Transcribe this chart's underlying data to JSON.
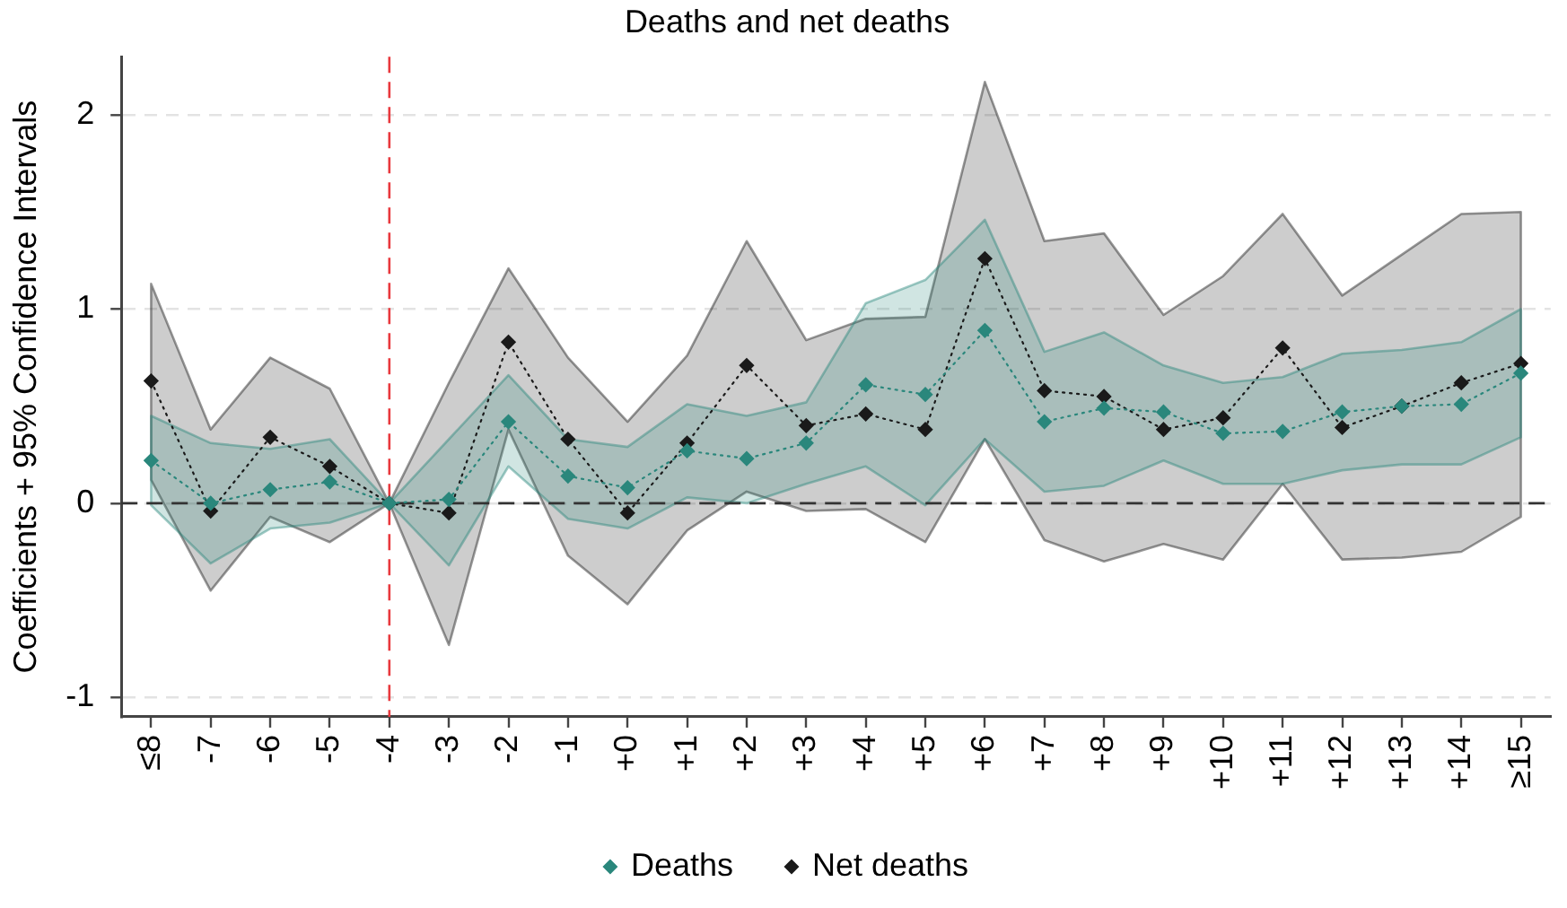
{
  "chart_data": {
    "type": "line",
    "title": "Deaths and net deaths",
    "ylabel": "Coefficients + 95% Confidence Intervals",
    "categories": [
      "≤8",
      "-7",
      "-6",
      "-5",
      "-4",
      "-3",
      "-2",
      "-1",
      "+0",
      "+1",
      "+2",
      "+3",
      "+4",
      "+5",
      "+6",
      "+7",
      "+8",
      "+9",
      "+10",
      "+11",
      "+12",
      "+13",
      "+14",
      "≥15"
    ],
    "series": [
      {
        "name": "Deaths",
        "color": "#2a877c",
        "values": [
          0.22,
          0.0,
          0.07,
          0.11,
          0,
          0.02,
          0.42,
          0.14,
          0.08,
          0.27,
          0.23,
          0.31,
          0.61,
          0.56,
          0.89,
          0.42,
          0.49,
          0.47,
          0.36,
          0.37,
          0.47,
          0.5,
          0.51,
          0.67
        ],
        "lower": [
          -0.01,
          -0.31,
          -0.13,
          -0.1,
          0,
          -0.32,
          0.19,
          -0.08,
          -0.13,
          0.03,
          0.0,
          0.1,
          0.19,
          -0.01,
          0.33,
          0.06,
          0.09,
          0.22,
          0.1,
          0.1,
          0.17,
          0.2,
          0.2,
          0.34
        ],
        "upper": [
          0.45,
          0.31,
          0.28,
          0.33,
          0,
          0.33,
          0.66,
          0.33,
          0.29,
          0.51,
          0.45,
          0.52,
          1.03,
          1.15,
          1.46,
          0.78,
          0.88,
          0.71,
          0.62,
          0.65,
          0.77,
          0.79,
          0.83,
          1.0
        ]
      },
      {
        "name": "Net deaths",
        "color": "#1a1a1a",
        "values": [
          0.63,
          -0.04,
          0.34,
          0.19,
          0,
          -0.05,
          0.83,
          0.33,
          -0.05,
          0.31,
          0.71,
          0.4,
          0.46,
          0.38,
          1.26,
          0.58,
          0.55,
          0.38,
          0.44,
          0.8,
          0.39,
          0.5,
          0.62,
          0.72
        ],
        "lower": [
          0.12,
          -0.45,
          -0.07,
          -0.2,
          0,
          -0.73,
          0.38,
          -0.27,
          -0.52,
          -0.14,
          0.06,
          -0.04,
          -0.03,
          -0.2,
          0.33,
          -0.19,
          -0.3,
          -0.21,
          -0.29,
          0.1,
          -0.29,
          -0.28,
          -0.25,
          -0.07
        ],
        "upper": [
          1.13,
          0.38,
          0.75,
          0.59,
          0,
          0.62,
          1.21,
          0.75,
          0.42,
          0.76,
          1.35,
          0.84,
          0.95,
          0.96,
          2.17,
          1.35,
          1.39,
          0.97,
          1.17,
          1.49,
          1.07,
          1.28,
          1.49,
          1.5
        ]
      }
    ],
    "ylim": [
      -1.1,
      2.3
    ],
    "yticks": [
      -1,
      0,
      1,
      2
    ],
    "grid": "y",
    "legend": "bottom",
    "marker": "diamond",
    "line_style": "dotted",
    "ref_lines": [
      {
        "axis": "y",
        "value": 0,
        "color": "#333333",
        "line_style": "dashed"
      },
      {
        "axis": "x",
        "value": "-4",
        "color": "#e8383d",
        "line_style": "dashed"
      }
    ]
  }
}
